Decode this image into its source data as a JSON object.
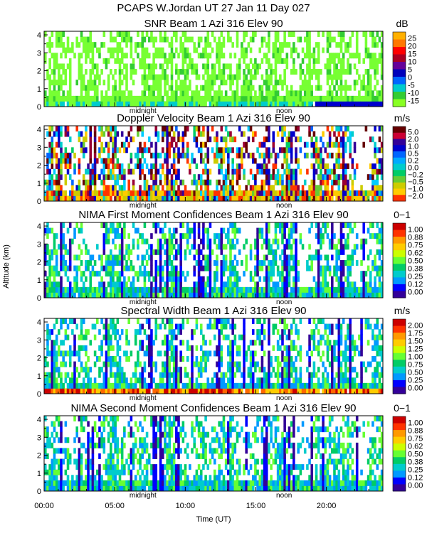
{
  "figure": {
    "title": "PCAPS W.Jordan UT  27 Jan 11 Day 027",
    "ylabel": "Altitude (km)",
    "xlabel": "Time (UT)"
  },
  "colors": {
    "dbz_scale": [
      "#33cc33",
      "#77ff33",
      "#00cccc",
      "#3399ff",
      "#0000cc",
      "#6600cc",
      "#330066",
      "#990099",
      "#cc0000",
      "#ff0000",
      "#ff6600",
      "#ffcc00"
    ],
    "vel_scale": [
      "#ff3300",
      "#ffcc00",
      "#cccc00",
      "#66cc33",
      "#00cc66",
      "#00cccc",
      "#00ccff",
      "#0066ff",
      "#0000cc",
      "#330099",
      "#990033",
      "#660000"
    ],
    "conf_scale": [
      "#330099",
      "#0000ff",
      "#0099ff",
      "#00cccc",
      "#00cc66",
      "#66ff33",
      "#ccff00",
      "#ffcc00",
      "#ff6600",
      "#cc0000"
    ]
  },
  "chart_data": [
    {
      "type": "heatmap",
      "title": "SNR Beam 1 Azi 316 Elev 90",
      "unit": "dB",
      "xlabel": "Time (UT)",
      "ylabel": "Altitude (km)",
      "xlim": [
        0,
        24
      ],
      "ylim": [
        0,
        4.2
      ],
      "x_ticks": [
        "00:00",
        "05:00",
        "10:00",
        "15:00",
        "20:00"
      ],
      "y_ticks": [
        "0",
        "1",
        "2",
        "3",
        "4"
      ],
      "annotations": [
        "midnight",
        "noon"
      ],
      "colorbar_labels": [
        "25",
        "20",
        "15",
        "10",
        "5",
        "0",
        "-5",
        "-10",
        "-15"
      ],
      "colorbar_colors": [
        "#ffb000",
        "#ff7700",
        "#ff0000",
        "#aa0022",
        "#660099",
        "#0000bb",
        "#0066ff",
        "#00cccc",
        "#33cc33",
        "#88ff22"
      ]
    },
    {
      "type": "heatmap",
      "title": "Doppler Velocity Beam 1 Azi 316 Elev 90",
      "unit": "m/s",
      "xlabel": "Time (UT)",
      "ylabel": "Altitude (km)",
      "xlim": [
        0,
        24
      ],
      "ylim": [
        0,
        4.2
      ],
      "x_ticks": [
        "00:00",
        "05:00",
        "10:00",
        "15:00",
        "20:00"
      ],
      "y_ticks": [
        "0",
        "1",
        "2",
        "3",
        "4"
      ],
      "annotations": [
        "midnight",
        "noon"
      ],
      "colorbar_labels": [
        "5.0",
        "2.0",
        "1.0",
        "0.5",
        "0.2",
        "0.0",
        "−0.2",
        "−0.5",
        "−1.0",
        "−2.0"
      ],
      "colorbar_colors": [
        "#660000",
        "#cc0033",
        "#330099",
        "#0000cc",
        "#0066ff",
        "#00aaff",
        "#00cccc",
        "#00cc66",
        "#66cc33",
        "#cccc00",
        "#ffcc00",
        "#ff3300"
      ]
    },
    {
      "type": "heatmap",
      "title": "NIMA First Moment Confidences Beam 1 Azi 316 Elev 90",
      "unit": "0−1",
      "xlabel": "Time (UT)",
      "ylabel": "Altitude (km)",
      "xlim": [
        0,
        24
      ],
      "ylim": [
        0,
        4.2
      ],
      "x_ticks": [
        "00:00",
        "05:00",
        "10:00",
        "15:00",
        "20:00"
      ],
      "y_ticks": [
        "0",
        "1",
        "2",
        "3",
        "4"
      ],
      "annotations": [
        "midnight",
        "noon"
      ],
      "colorbar_labels": [
        "1.00",
        "0.88",
        "0.75",
        "0.62",
        "0.50",
        "0.38",
        "0.25",
        "0.12",
        "0.00"
      ],
      "colorbar_colors": [
        "#cc0000",
        "#ff3300",
        "#ff9900",
        "#ffcc00",
        "#ccff00",
        "#66ff33",
        "#00cc66",
        "#00cccc",
        "#0099ff",
        "#0000ff",
        "#330099"
      ]
    },
    {
      "type": "heatmap",
      "title": "Spectral Width Beam 1 Azi 316 Elev 90",
      "unit": "m/s",
      "xlabel": "Time (UT)",
      "ylabel": "Altitude (km)",
      "xlim": [
        0,
        24
      ],
      "ylim": [
        0,
        4.2
      ],
      "x_ticks": [
        "00:00",
        "05:00",
        "10:00",
        "15:00",
        "20:00"
      ],
      "y_ticks": [
        "0",
        "1",
        "2",
        "3",
        "4"
      ],
      "annotations": [
        "midnight",
        "noon"
      ],
      "colorbar_labels": [
        "2.00",
        "1.75",
        "1.50",
        "1.25",
        "1.00",
        "0.75",
        "0.50",
        "0.25",
        "0.00"
      ],
      "colorbar_colors": [
        "#cc0000",
        "#ff3300",
        "#ff9900",
        "#ffcc00",
        "#ccff00",
        "#66ff33",
        "#00cc66",
        "#00cccc",
        "#0099ff",
        "#0000ff",
        "#330099"
      ]
    },
    {
      "type": "heatmap",
      "title": "NIMA Second Moment Confidences Beam 1 Azi 316 Elev 90",
      "unit": "0−1",
      "xlabel": "Time (UT)",
      "ylabel": "Altitude (km)",
      "xlim": [
        0,
        24
      ],
      "ylim": [
        0,
        4.2
      ],
      "x_ticks": [
        "00:00",
        "05:00",
        "10:00",
        "15:00",
        "20:00"
      ],
      "y_ticks": [
        "0",
        "1",
        "2",
        "3",
        "4"
      ],
      "annotations": [
        "midnight",
        "noon"
      ],
      "colorbar_labels": [
        "1.00",
        "0.88",
        "0.75",
        "0.62",
        "0.50",
        "0.38",
        "0.25",
        "0.12",
        "0.00"
      ],
      "colorbar_colors": [
        "#cc0000",
        "#ff3300",
        "#ff9900",
        "#ffcc00",
        "#ccff00",
        "#66ff33",
        "#00cc66",
        "#00cccc",
        "#0099ff",
        "#0000ff",
        "#330099"
      ]
    }
  ]
}
